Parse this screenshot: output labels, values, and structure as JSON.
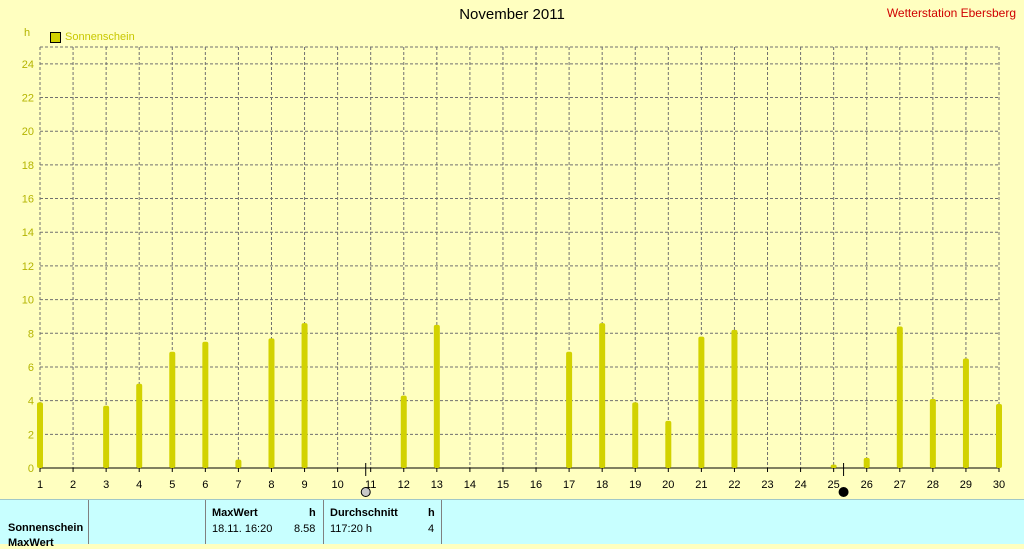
{
  "header": {
    "title": "November 2011",
    "station": "Wetterstation Ebersberg"
  },
  "legend": {
    "label": "Sonnenschein",
    "color": "#d2d200"
  },
  "chart_data": {
    "type": "bar",
    "title": "November 2011",
    "ylabel": "h",
    "ylim": [
      0,
      25
    ],
    "yticks": [
      0,
      2,
      4,
      6,
      8,
      10,
      12,
      14,
      16,
      18,
      20,
      22,
      24
    ],
    "categories": [
      "1",
      "2",
      "3",
      "4",
      "5",
      "6",
      "7",
      "8",
      "9",
      "10",
      "11",
      "12",
      "13",
      "14",
      "15",
      "16",
      "17",
      "18",
      "19",
      "20",
      "21",
      "22",
      "23",
      "24",
      "25",
      "26",
      "27",
      "28",
      "29",
      "30"
    ],
    "series": [
      {
        "name": "Sonnenschein",
        "color": "#d2d200",
        "values": [
          3.9,
          0,
          3.7,
          5.0,
          6.9,
          7.5,
          0.5,
          7.7,
          8.6,
          0,
          0,
          4.3,
          8.5,
          0,
          0,
          0,
          6.9,
          8.6,
          3.9,
          2.8,
          7.8,
          8.2,
          0,
          0,
          0.2,
          0.6,
          8.4,
          4.1,
          6.5,
          3.8
        ]
      }
    ],
    "grid": true,
    "markers": [
      {
        "day": 10.85,
        "symbol": "full-moon-icon"
      },
      {
        "day": 25.3,
        "symbol": "new-moon-icon"
      }
    ]
  },
  "table": {
    "row_label": "Sonnenschein",
    "row_label_2": "MaxWert",
    "max_header": "MaxWert",
    "max_unit": "h",
    "max_date": "18.11.  16:20",
    "max_value": "8.58",
    "avg_header": "Durchschnitt",
    "avg_unit": "h",
    "avg_total": "117:20 h",
    "avg_value": "4"
  }
}
